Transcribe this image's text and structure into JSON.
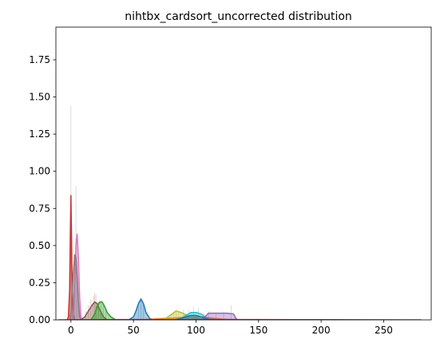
{
  "chart_data": {
    "type": "area",
    "title": "nihtbx_cardsort_uncorrected distribution",
    "xlabel": "",
    "ylabel": "",
    "xlim": [
      -12,
      288
    ],
    "ylim": [
      0,
      1.97
    ],
    "x_ticks": [
      0,
      50,
      100,
      150,
      200,
      250
    ],
    "y_ticks": [
      0.0,
      0.25,
      0.5,
      0.75,
      1.0,
      1.25,
      1.5,
      1.75
    ],
    "x_tick_labels": [
      "0",
      "50",
      "100",
      "150",
      "200",
      "250"
    ],
    "y_tick_labels": [
      "0.00",
      "0.25",
      "0.50",
      "0.75",
      "1.00",
      "1.25",
      "1.50",
      "1.75"
    ],
    "grid": false,
    "legend": "none",
    "series": [
      {
        "color": "#d62728",
        "kde": [
          [
            -3,
            0
          ],
          [
            -2,
            0.02
          ],
          [
            -1,
            0.2
          ],
          [
            -0.5,
            0.55
          ],
          [
            0,
            0.84
          ],
          [
            0.5,
            0.55
          ],
          [
            1,
            0.2
          ],
          [
            2,
            0.03
          ],
          [
            3,
            0
          ]
        ],
        "hist": [
          [
            -1,
            0.3
          ],
          [
            0,
            0.84
          ],
          [
            1,
            0.33
          ]
        ]
      },
      {
        "color": "#e377c2",
        "kde": [
          [
            1,
            0
          ],
          [
            2,
            0.05
          ],
          [
            3,
            0.25
          ],
          [
            4,
            0.5
          ],
          [
            5,
            0.58
          ],
          [
            6,
            0.42
          ],
          [
            7,
            0.15
          ],
          [
            8,
            0.02
          ],
          [
            9,
            0
          ]
        ],
        "hist": [
          [
            3,
            0.3
          ],
          [
            4,
            0.55
          ],
          [
            5,
            0.58
          ],
          [
            6,
            0.2
          ]
        ]
      },
      {
        "color": "#7f7f7f",
        "kde": [
          [
            -1,
            0
          ],
          [
            0,
            0.05
          ],
          [
            1,
            0.2
          ],
          [
            2,
            0.32
          ],
          [
            3,
            0.44
          ],
          [
            4,
            0.42
          ],
          [
            5,
            0.3
          ],
          [
            6,
            0.12
          ],
          [
            7,
            0.02
          ],
          [
            8,
            0
          ]
        ],
        "hist": [
          [
            0,
            1.44
          ],
          [
            1,
            0.2
          ],
          [
            2,
            0.35
          ],
          [
            3,
            0.4
          ],
          [
            4,
            0.9
          ],
          [
            5,
            0.3
          ],
          [
            6,
            0.1
          ]
        ]
      },
      {
        "color": "#8c564b",
        "kde": [
          [
            8,
            0
          ],
          [
            11,
            0.02
          ],
          [
            14,
            0.06
          ],
          [
            17,
            0.1
          ],
          [
            19,
            0.12
          ],
          [
            21,
            0.11
          ],
          [
            23,
            0.07
          ],
          [
            26,
            0.02
          ],
          [
            29,
            0
          ]
        ],
        "hist": [
          [
            12,
            0.06
          ],
          [
            14,
            0.1
          ],
          [
            16,
            0.14
          ],
          [
            18,
            0.16
          ],
          [
            19,
            0.18
          ],
          [
            20,
            0.17
          ],
          [
            22,
            0.12
          ],
          [
            24,
            0.06
          ]
        ]
      },
      {
        "color": "#2ca02c",
        "kde": [
          [
            16,
            0
          ],
          [
            19,
            0.04
          ],
          [
            21,
            0.09
          ],
          [
            23,
            0.12
          ],
          [
            25,
            0.12
          ],
          [
            27,
            0.09
          ],
          [
            29,
            0.05
          ],
          [
            32,
            0.02
          ],
          [
            36,
            0
          ]
        ],
        "hist": [
          [
            20,
            0.1
          ],
          [
            22,
            0.12
          ],
          [
            24,
            0.13
          ],
          [
            26,
            0.1
          ],
          [
            28,
            0.06
          ]
        ]
      },
      {
        "color": "#1f77b4",
        "kde": [
          [
            46,
            0
          ],
          [
            50,
            0.02
          ],
          [
            52,
            0.06
          ],
          [
            54,
            0.11
          ],
          [
            56,
            0.14
          ],
          [
            58,
            0.11
          ],
          [
            60,
            0.05
          ],
          [
            63,
            0.01
          ],
          [
            66,
            0
          ]
        ],
        "hist": [
          [
            54,
            0.12
          ],
          [
            56,
            0.14
          ],
          [
            58,
            0.1
          ]
        ]
      },
      {
        "color": "#ff7f0e",
        "kde": [
          [
            55,
            0
          ],
          [
            65,
            0.005
          ],
          [
            75,
            0.01
          ],
          [
            85,
            0.015
          ],
          [
            95,
            0.02
          ],
          [
            105,
            0.02
          ],
          [
            115,
            0.01
          ],
          [
            125,
            0.003
          ],
          [
            135,
            0
          ]
        ],
        "hist": []
      },
      {
        "color": "#bcbd22",
        "kde": [
          [
            72,
            0
          ],
          [
            76,
            0.01
          ],
          [
            80,
            0.035
          ],
          [
            84,
            0.06
          ],
          [
            88,
            0.05
          ],
          [
            92,
            0.035
          ],
          [
            96,
            0.02
          ],
          [
            100,
            0.01
          ],
          [
            104,
            0
          ]
        ],
        "hist": [
          [
            82,
            0.05
          ],
          [
            84,
            0.06
          ],
          [
            86,
            0.05
          ]
        ]
      },
      {
        "color": "#17becf",
        "kde": [
          [
            84,
            0
          ],
          [
            88,
            0.01
          ],
          [
            92,
            0.03
          ],
          [
            96,
            0.05
          ],
          [
            100,
            0.05
          ],
          [
            104,
            0.04
          ],
          [
            108,
            0.015
          ],
          [
            112,
            0
          ]
        ],
        "hist": [
          [
            90,
            0.07
          ],
          [
            94,
            0.07
          ],
          [
            98,
            0.09
          ],
          [
            102,
            0.08
          ],
          [
            106,
            0.05
          ]
        ]
      },
      {
        "color": "#9467bd",
        "kde": [
          [
            105,
            0
          ],
          [
            107,
            0.02
          ],
          [
            110,
            0.045
          ],
          [
            115,
            0.045
          ],
          [
            120,
            0.045
          ],
          [
            125,
            0.045
          ],
          [
            130,
            0.04
          ],
          [
            132,
            0.01
          ],
          [
            133,
            0
          ]
        ],
        "hist": [
          [
            110,
            0.06
          ],
          [
            116,
            0.05
          ],
          [
            122,
            0.06
          ],
          [
            128,
            0.1
          ]
        ]
      },
      {
        "color": "#1f77b4",
        "kde": [
          [
            82,
            0
          ],
          [
            88,
            0.01
          ],
          [
            92,
            0.02
          ],
          [
            96,
            0.03
          ],
          [
            100,
            0.03
          ],
          [
            104,
            0.02
          ],
          [
            110,
            0.005
          ],
          [
            116,
            0
          ]
        ],
        "hist": []
      },
      {
        "color": "#d62728",
        "kde": [
          [
            -10,
            0
          ],
          [
            40,
            0.002
          ],
          [
            100,
            0.003
          ],
          [
            150,
            0.002
          ],
          [
            200,
            0.001
          ],
          [
            280,
            0
          ]
        ],
        "hist": []
      }
    ]
  }
}
